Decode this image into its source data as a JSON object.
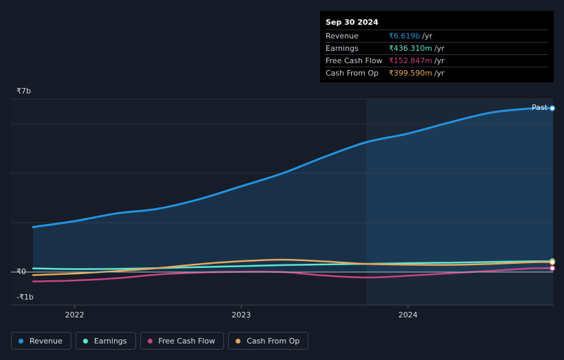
{
  "chart_data": {
    "type": "line",
    "title": "",
    "currency": "₹",
    "y_tick_labels": {
      "top": "₹7b",
      "zero": "₹0",
      "bottom": "-₹1b"
    },
    "ylim": [
      -1,
      7
    ],
    "x_ticks": [
      {
        "label": "2022",
        "x": 2022.0
      },
      {
        "label": "2023",
        "x": 2023.0
      },
      {
        "label": "2024",
        "x": 2024.0
      }
    ],
    "xlim": [
      2021.75,
      2024.87
    ],
    "past_start_x": 2023.75,
    "past_label": "Past",
    "series": [
      {
        "name": "Revenue",
        "color": "#2394df",
        "unit": "₹b",
        "points": [
          [
            2021.75,
            1.82
          ],
          [
            2022.0,
            2.06
          ],
          [
            2022.25,
            2.37
          ],
          [
            2022.5,
            2.56
          ],
          [
            2022.75,
            2.95
          ],
          [
            2023.0,
            3.47
          ],
          [
            2023.25,
            4.0
          ],
          [
            2023.5,
            4.66
          ],
          [
            2023.75,
            5.25
          ],
          [
            2024.0,
            5.6
          ],
          [
            2024.25,
            6.05
          ],
          [
            2024.5,
            6.45
          ],
          [
            2024.75,
            6.62
          ]
        ]
      },
      {
        "name": "Earnings",
        "color": "#5ee6cf",
        "unit": "₹b",
        "points": [
          [
            2021.75,
            0.15
          ],
          [
            2022.0,
            0.12
          ],
          [
            2022.25,
            0.13
          ],
          [
            2022.5,
            0.16
          ],
          [
            2022.75,
            0.2
          ],
          [
            2023.0,
            0.24
          ],
          [
            2023.25,
            0.28
          ],
          [
            2023.5,
            0.31
          ],
          [
            2023.75,
            0.33
          ],
          [
            2024.0,
            0.36
          ],
          [
            2024.25,
            0.38
          ],
          [
            2024.5,
            0.41
          ],
          [
            2024.75,
            0.436
          ]
        ]
      },
      {
        "name": "Free Cash Flow",
        "color": "#c64585",
        "unit": "₹b",
        "points": [
          [
            2021.75,
            -0.38
          ],
          [
            2022.0,
            -0.34
          ],
          [
            2022.25,
            -0.25
          ],
          [
            2022.5,
            -0.1
          ],
          [
            2022.75,
            -0.02
          ],
          [
            2023.0,
            0.01
          ],
          [
            2023.25,
            0.0
          ],
          [
            2023.5,
            -0.14
          ],
          [
            2023.75,
            -0.22
          ],
          [
            2024.0,
            -0.15
          ],
          [
            2024.25,
            -0.05
          ],
          [
            2024.5,
            0.05
          ],
          [
            2024.75,
            0.153
          ]
        ]
      },
      {
        "name": "Cash From Op",
        "color": "#e7a85a",
        "unit": "₹b",
        "points": [
          [
            2021.75,
            -0.12
          ],
          [
            2022.0,
            -0.06
          ],
          [
            2022.25,
            0.04
          ],
          [
            2022.5,
            0.16
          ],
          [
            2022.75,
            0.32
          ],
          [
            2023.0,
            0.44
          ],
          [
            2023.25,
            0.5
          ],
          [
            2023.5,
            0.43
          ],
          [
            2023.75,
            0.33
          ],
          [
            2024.0,
            0.3
          ],
          [
            2024.25,
            0.29
          ],
          [
            2024.5,
            0.33
          ],
          [
            2024.75,
            0.4
          ]
        ]
      }
    ],
    "grid": true,
    "legend_position": "bottom-left"
  },
  "tooltip": {
    "date": "Sep 30 2024",
    "rows": [
      {
        "label": "Revenue",
        "value": "₹6.619b",
        "unit": "/yr",
        "color": "#2394df"
      },
      {
        "label": "Earnings",
        "value": "₹436.310m",
        "unit": "/yr",
        "color": "#5ee6cf"
      },
      {
        "label": "Free Cash Flow",
        "value": "₹152.847m",
        "unit": "/yr",
        "color": "#c64585"
      },
      {
        "label": "Cash From Op",
        "value": "₹399.590m",
        "unit": "/yr",
        "color": "#e7a85a"
      }
    ]
  },
  "legend": {
    "items": [
      {
        "label": "Revenue",
        "color": "#2394df"
      },
      {
        "label": "Earnings",
        "color": "#5ee6cf"
      },
      {
        "label": "Free Cash Flow",
        "color": "#c64585"
      },
      {
        "label": "Cash From Op",
        "color": "#e7a85a"
      }
    ]
  }
}
